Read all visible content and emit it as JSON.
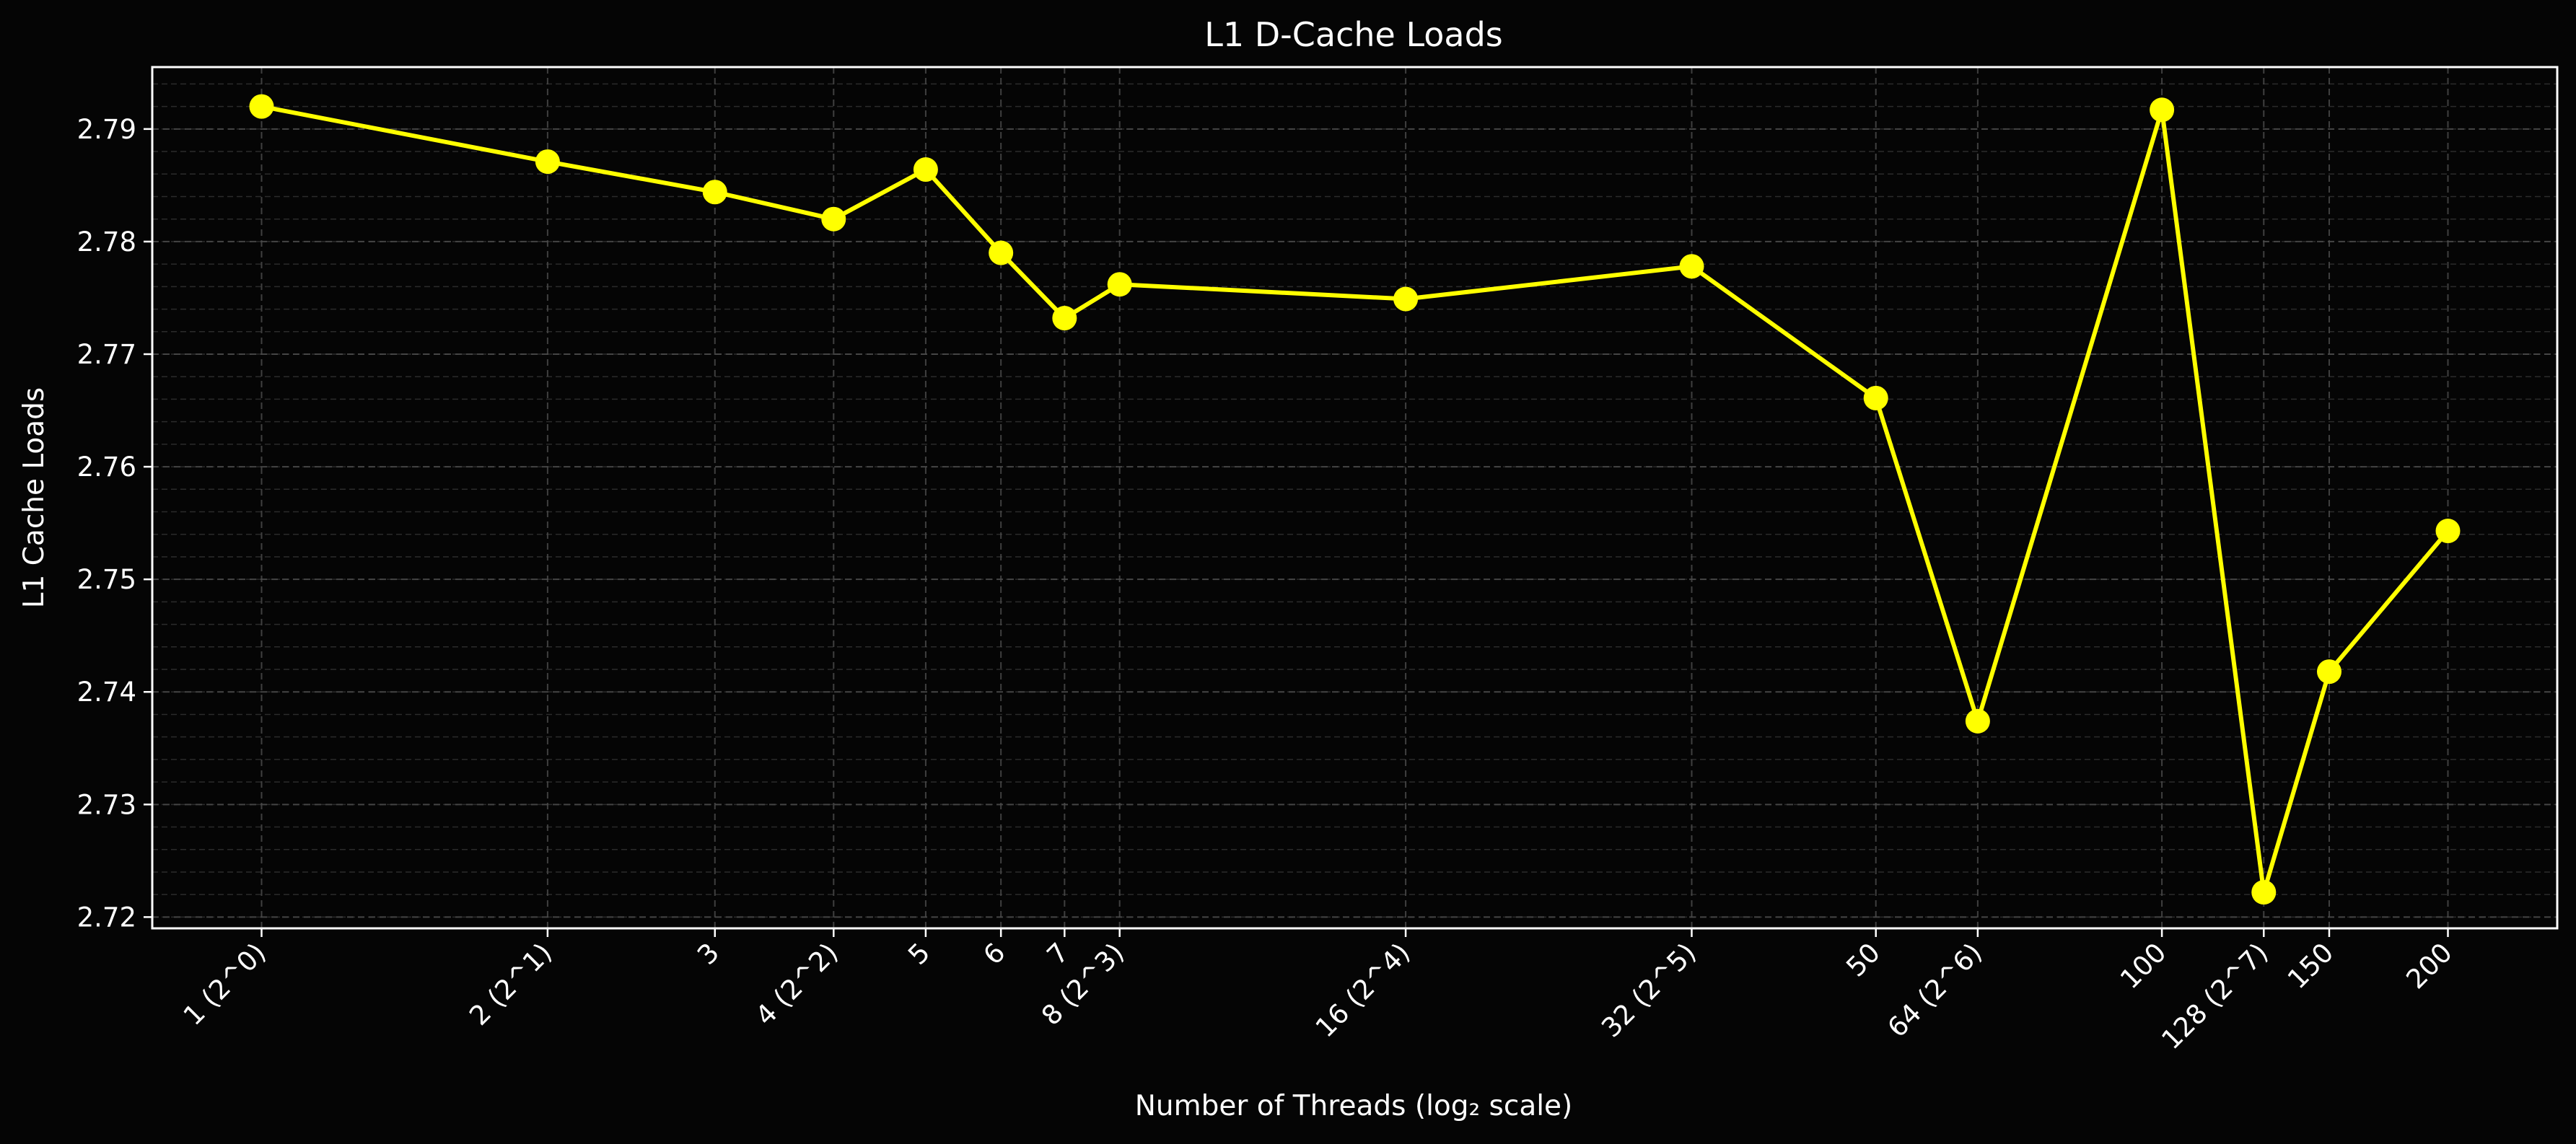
{
  "chart_data": {
    "type": "line",
    "title": "L1 D-Cache Loads",
    "xlabel": "Number of Threads (log₂ scale)",
    "ylabel": "L1 Cache Loads",
    "x_scale": "log2",
    "x": [
      1,
      2,
      3,
      4,
      5,
      6,
      7,
      8,
      16,
      32,
      50,
      64,
      100,
      128,
      150,
      200
    ],
    "x_tick_labels": [
      "1 (2^0)",
      "2 (2^1)",
      "3",
      "4 (2^2)",
      "5",
      "6",
      "7",
      "8 (2^3)",
      "16 (2^4)",
      "32 (2^5)",
      "50",
      "64 (2^6)",
      "100",
      "128 (2^7)",
      "150",
      "200"
    ],
    "series": [
      {
        "values": [
          2.792,
          2.7871,
          2.7844,
          2.782,
          2.7864,
          2.779,
          2.7732,
          2.7762,
          2.7749,
          2.7778,
          2.7661,
          2.7374,
          2.7917,
          2.7222,
          2.7418,
          2.7543
        ]
      }
    ],
    "y_ticks": [
      2.72,
      2.73,
      2.74,
      2.75,
      2.76,
      2.77,
      2.78,
      2.79
    ],
    "y_tick_labels": [
      "2.72",
      "2.73",
      "2.74",
      "2.75",
      "2.76",
      "2.77",
      "2.78",
      "2.79"
    ],
    "ylim": [
      2.719,
      2.7955
    ],
    "grid": true,
    "colors": {
      "background": "#050505",
      "line": "#ffff00",
      "marker": "#ffff00",
      "axes": "#ffffff",
      "grid": "#4a4a4a",
      "text": "#ffffff"
    }
  }
}
